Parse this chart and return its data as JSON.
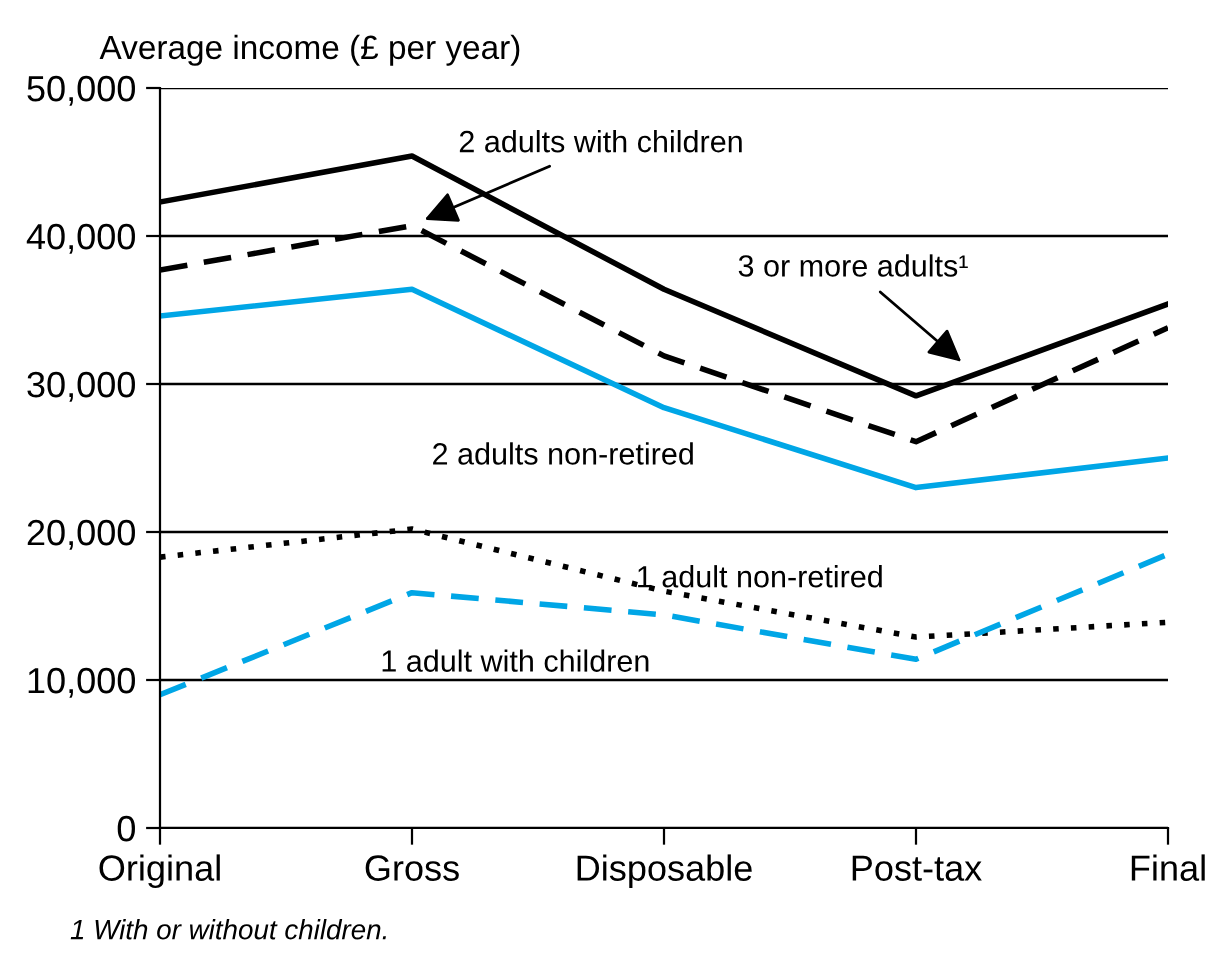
{
  "chart_data": {
    "type": "line",
    "ylabel": "Average income (£ per year)",
    "categories": [
      "Original",
      "Gross",
      "Disposable",
      "Post-tax",
      "Final"
    ],
    "series": [
      {
        "name": "3 or more adults¹",
        "color": "#000000",
        "line_style": "solid",
        "values": [
          42300,
          45400,
          36400,
          29200,
          35400
        ]
      },
      {
        "name": "2 adults with children",
        "color": "#000000",
        "line_style": "dashed",
        "values": [
          37700,
          40700,
          31900,
          26100,
          33800
        ]
      },
      {
        "name": "2 adults non-retired",
        "color": "#00a6e6",
        "line_style": "solid",
        "values": [
          34600,
          36400,
          28400,
          23000,
          25000
        ]
      },
      {
        "name": "1 adult non-retired",
        "color": "#000000",
        "line_style": "dotted",
        "values": [
          18300,
          20200,
          16000,
          12900,
          13900
        ]
      },
      {
        "name": "1 adult with children",
        "color": "#00a6e6",
        "line_style": "dashed",
        "values": [
          9000,
          15900,
          14400,
          11400,
          18500
        ]
      }
    ],
    "ylim": [
      0,
      50000
    ],
    "yticks": [
      {
        "value": 0,
        "label": "0"
      },
      {
        "value": 10000,
        "label": "10,000"
      },
      {
        "value": 20000,
        "label": "20,000"
      },
      {
        "value": 30000,
        "label": "30,000"
      },
      {
        "value": 40000,
        "label": "40,000"
      },
      {
        "value": 50000,
        "label": "50,000"
      }
    ],
    "grid": "y",
    "legend": false,
    "marker": "none",
    "annotations": [
      "1 With or without children."
    ]
  }
}
